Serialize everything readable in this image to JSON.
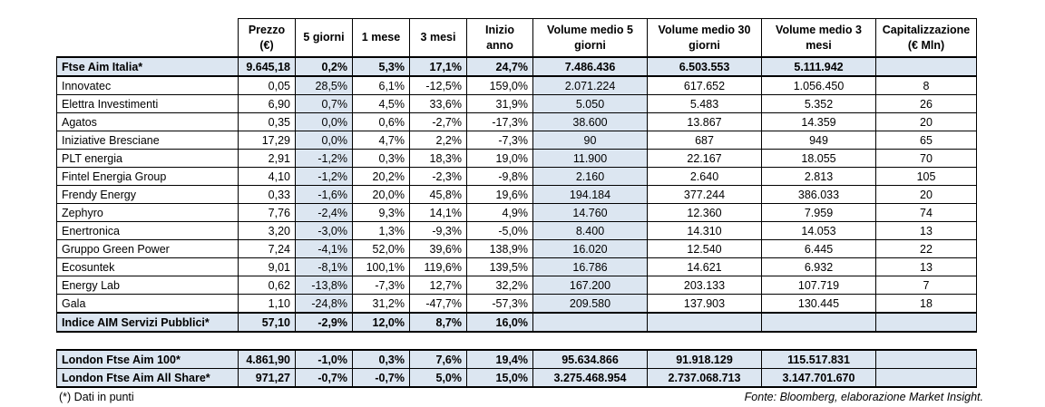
{
  "headers": [
    "",
    "Prezzo (€)",
    "5 giorni",
    "1 mese",
    "3 mesi",
    "Inizio anno",
    "Volume medio 5 giorni",
    "Volume medio 30 giorni",
    "Volume medio 3 mesi",
    "Capitalizzazione (€ Mln)"
  ],
  "index_top": {
    "name": "Ftse Aim Italia*",
    "cells": [
      "9.645,18",
      "0,2%",
      "5,3%",
      "17,1%",
      "24,7%",
      "7.486.436",
      "6.503.553",
      "5.111.942",
      ""
    ]
  },
  "rows": [
    {
      "name": "Innovatec",
      "cells": [
        "0,05",
        "28,5%",
        "6,1%",
        "-12,5%",
        "159,0%",
        "2.071.224",
        "617.652",
        "1.056.450",
        "8"
      ]
    },
    {
      "name": "Elettra Investimenti",
      "cells": [
        "6,90",
        "0,7%",
        "4,5%",
        "33,6%",
        "31,9%",
        "5.050",
        "5.483",
        "5.352",
        "26"
      ]
    },
    {
      "name": "Agatos",
      "cells": [
        "0,35",
        "0,0%",
        "0,6%",
        "-2,7%",
        "-17,3%",
        "38.600",
        "13.867",
        "14.359",
        "20"
      ]
    },
    {
      "name": "Iniziative Bresciane",
      "cells": [
        "17,29",
        "0,0%",
        "4,7%",
        "2,2%",
        "-7,3%",
        "90",
        "687",
        "949",
        "65"
      ]
    },
    {
      "name": "PLT energia",
      "cells": [
        "2,91",
        "-1,2%",
        "0,3%",
        "18,3%",
        "19,0%",
        "11.900",
        "22.167",
        "18.055",
        "70"
      ]
    },
    {
      "name": "Fintel Energia Group",
      "cells": [
        "4,10",
        "-1,2%",
        "20,2%",
        "-2,3%",
        "-9,8%",
        "2.160",
        "2.640",
        "2.813",
        "105"
      ]
    },
    {
      "name": "Frendy Energy",
      "cells": [
        "0,33",
        "-1,6%",
        "20,0%",
        "45,8%",
        "19,6%",
        "194.184",
        "377.244",
        "386.033",
        "20"
      ]
    },
    {
      "name": "Zephyro",
      "cells": [
        "7,76",
        "-2,4%",
        "9,3%",
        "14,1%",
        "4,9%",
        "14.760",
        "12.360",
        "7.959",
        "74"
      ]
    },
    {
      "name": "Enertronica",
      "cells": [
        "3,20",
        "-3,0%",
        "1,3%",
        "-9,3%",
        "-5,0%",
        "8.400",
        "14.310",
        "14.053",
        "13"
      ]
    },
    {
      "name": "Gruppo Green Power",
      "cells": [
        "7,24",
        "-4,1%",
        "52,0%",
        "39,6%",
        "138,9%",
        "16.020",
        "12.540",
        "6.445",
        "22"
      ]
    },
    {
      "name": "Ecosuntek",
      "cells": [
        "9,01",
        "-8,1%",
        "100,1%",
        "119,6%",
        "139,5%",
        "16.786",
        "14.621",
        "6.932",
        "13"
      ]
    },
    {
      "name": "Energy Lab",
      "cells": [
        "0,62",
        "-13,8%",
        "-7,3%",
        "12,7%",
        "32,2%",
        "167.200",
        "203.133",
        "107.719",
        "7"
      ]
    },
    {
      "name": "Gala",
      "cells": [
        "1,10",
        "-24,8%",
        "31,2%",
        "-47,7%",
        "-57,3%",
        "209.580",
        "137.903",
        "130.445",
        "18"
      ]
    }
  ],
  "index_bottom": {
    "name": "Indice AIM Servizi Pubblici*",
    "cells": [
      "57,10",
      "-2,9%",
      "12,0%",
      "8,7%",
      "16,0%",
      "",
      "",
      "",
      ""
    ]
  },
  "london": [
    {
      "name": "London Ftse Aim 100*",
      "cells": [
        "4.861,90",
        "-1,0%",
        "0,3%",
        "7,6%",
        "19,4%",
        "95.634.866",
        "91.918.129",
        "115.517.831",
        ""
      ]
    },
    {
      "name": "London Ftse Aim All Share*",
      "cells": [
        "971,27",
        "-0,7%",
        "-0,7%",
        "5,0%",
        "15,0%",
        "3.275.468.954",
        "2.737.068.713",
        "3.147.701.670",
        ""
      ]
    }
  ],
  "footnote": "(*) Dati in punti",
  "source": "Fonte: Bloomberg, elaborazione Market Insight.",
  "colors": {
    "highlight": "#dce6f1",
    "border": "#000000"
  }
}
